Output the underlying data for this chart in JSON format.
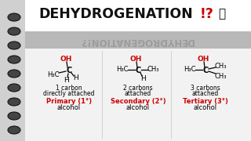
{
  "title": "DEHYDROGENATION!?",
  "title_emoji": "🤔",
  "reflection_text": "DEHYDROGENATION!?",
  "bg_color": "#d0d0d0",
  "white_box_color": "#f0f0f0",
  "spiral_color": "#333333",
  "red_color": "#cc0000",
  "black_color": "#111111",
  "sub3": "₃",
  "deg": "°",
  "structures": [
    {
      "label1": "1 carbon",
      "label2": "directly attached",
      "type_label": "Primary (1°)",
      "type_label2": "alcohol"
    },
    {
      "label1": "2 carbons",
      "label2": "attached",
      "type_label": "Secondary (2°)",
      "type_label2": "alcohol"
    },
    {
      "label1": "3 carbons",
      "label2": "attached",
      "type_label": "Tertiary (3°)",
      "type_label2": "alcohol"
    }
  ]
}
